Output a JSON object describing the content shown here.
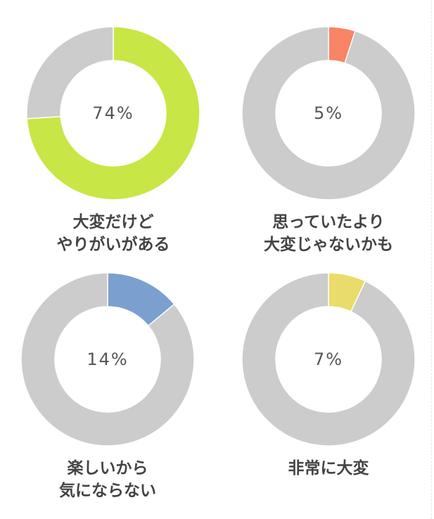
{
  "chart_data": [
    {
      "type": "pie",
      "variant": "donut",
      "slices": [
        {
          "label": "大変だけどやりがいがある",
          "value": 74,
          "color": "#c8e645"
        },
        {
          "label": "",
          "value": 26,
          "color": "#cccccc"
        }
      ],
      "center_text": "74%",
      "caption_lines": [
        "大変だけど",
        "やりがいがある"
      ]
    },
    {
      "type": "pie",
      "variant": "donut",
      "slices": [
        {
          "label": "思っていたより大変じゃないかも",
          "value": 5,
          "color": "#f98466"
        },
        {
          "label": "",
          "value": 95,
          "color": "#cccccc"
        }
      ],
      "center_text": "5%",
      "caption_lines": [
        "思っていたより",
        "大変じゃないかも"
      ]
    },
    {
      "type": "pie",
      "variant": "donut",
      "slices": [
        {
          "label": "楽しいから気にならない",
          "value": 14,
          "color": "#7b9fcf"
        },
        {
          "label": "",
          "value": 86,
          "color": "#cccccc"
        }
      ],
      "center_text": "14%",
      "caption_lines": [
        "楽しいから",
        "気にならない"
      ]
    },
    {
      "type": "pie",
      "variant": "donut",
      "slices": [
        {
          "label": "非常に大変",
          "value": 7,
          "color": "#e9dc6a"
        },
        {
          "label": "",
          "value": 93,
          "color": "#cccccc"
        }
      ],
      "center_text": "7%",
      "caption_lines": [
        "非常に大変"
      ]
    }
  ]
}
